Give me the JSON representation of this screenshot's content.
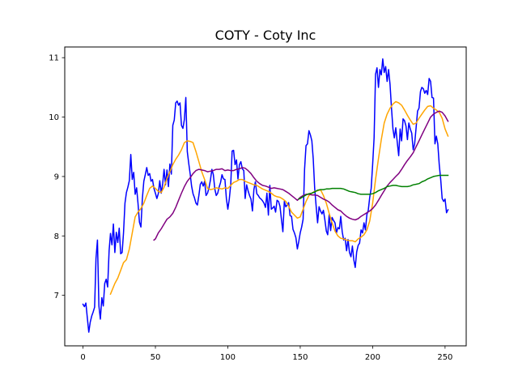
{
  "chart_data": {
    "type": "line",
    "title": "COTY - Coty Inc",
    "xlabel": "",
    "ylabel": "",
    "xlim": [
      -12.6,
      264.6
    ],
    "ylim": [
      6.15,
      11.18
    ],
    "xticks": [
      0,
      50,
      100,
      150,
      200,
      250
    ],
    "yticks": [
      7,
      8,
      9,
      10,
      11
    ],
    "grid": false,
    "legend": false,
    "series": [
      {
        "color": "#0000ff",
        "x": [
          0,
          1,
          2,
          3,
          4,
          5,
          6,
          7,
          8,
          9,
          10,
          11,
          12,
          13,
          14,
          15,
          16,
          17,
          18,
          19,
          20,
          21,
          22,
          23,
          24,
          25,
          26,
          27,
          28,
          29,
          30,
          31,
          32,
          33,
          34,
          35,
          36,
          37,
          38,
          39,
          40,
          41,
          42,
          43,
          44,
          45,
          46,
          47,
          48,
          49,
          50,
          51,
          52,
          53,
          54,
          55,
          56,
          57,
          58,
          59,
          60,
          61,
          62,
          63,
          64,
          65,
          66,
          67,
          68,
          69,
          70,
          71,
          72,
          73,
          74,
          75,
          76,
          77,
          78,
          79,
          80,
          81,
          82,
          83,
          84,
          85,
          86,
          87,
          88,
          89,
          90,
          91,
          92,
          93,
          94,
          95,
          96,
          97,
          98,
          99,
          100,
          101,
          102,
          103,
          104,
          105,
          106,
          107,
          108,
          109,
          110,
          111,
          112,
          113,
          114,
          115,
          116,
          117,
          118,
          119,
          120,
          121,
          122,
          123,
          124,
          125,
          126,
          127,
          128,
          129,
          130,
          131,
          132,
          133,
          134,
          135,
          136,
          137,
          138,
          139,
          140,
          141,
          142,
          143,
          144,
          145,
          146,
          147,
          148,
          149,
          150,
          151,
          152,
          153,
          154,
          155,
          156,
          157,
          158,
          159,
          160,
          161,
          162,
          163,
          164,
          165,
          166,
          167,
          168,
          169,
          170,
          171,
          172,
          173,
          174,
          175,
          176,
          177,
          178,
          179,
          180,
          181,
          182,
          183,
          184,
          185,
          186,
          187,
          188,
          189,
          190,
          191,
          192,
          193,
          194,
          195,
          196,
          197,
          198,
          199,
          200,
          201,
          202,
          203,
          204,
          205,
          206,
          207,
          208,
          209,
          210,
          211,
          212,
          213,
          214,
          215,
          216,
          217,
          218,
          219,
          220,
          221,
          222,
          223,
          224,
          225,
          226,
          227,
          228,
          229,
          230,
          231,
          232,
          233,
          234,
          235,
          236,
          237,
          238,
          239,
          240,
          241,
          242,
          243,
          244,
          245,
          246,
          247,
          248,
          249,
          250,
          251,
          252
        ],
        "y": [
          6.85,
          6.81,
          6.87,
          6.62,
          6.38,
          6.55,
          6.65,
          6.72,
          6.8,
          7.62,
          7.93,
          6.82,
          6.6,
          6.96,
          6.82,
          7.2,
          7.27,
          7.14,
          7.75,
          8.04,
          7.85,
          8.2,
          7.72,
          8.06,
          7.89,
          8.13,
          7.7,
          7.72,
          8.05,
          8.55,
          8.73,
          8.82,
          8.93,
          9.37,
          8.95,
          9.07,
          8.7,
          8.81,
          8.55,
          8.23,
          8.15,
          8.63,
          8.92,
          9.03,
          9.15,
          9.02,
          9.05,
          8.92,
          8.95,
          8.8,
          8.72,
          8.63,
          8.71,
          8.93,
          8.72,
          8.88,
          9.12,
          8.86,
          9.11,
          8.83,
          9.21,
          9.04,
          9.86,
          9.95,
          10.24,
          10.27,
          10.2,
          10.24,
          9.86,
          9.81,
          9.96,
          10.33,
          9.42,
          9.22,
          9.04,
          8.84,
          8.71,
          8.64,
          8.55,
          8.52,
          8.68,
          8.87,
          8.91,
          8.84,
          8.92,
          8.68,
          8.72,
          8.81,
          8.94,
          9.12,
          9.03,
          8.79,
          8.68,
          8.72,
          8.82,
          8.9,
          9.03,
          8.96,
          8.95,
          8.63,
          8.45,
          8.62,
          8.87,
          9.43,
          9.44,
          9.2,
          9.28,
          8.96,
          9.2,
          9.25,
          9.13,
          9.1,
          8.63,
          8.86,
          8.76,
          8.68,
          8.62,
          8.42,
          8.78,
          8.91,
          8.71,
          8.68,
          8.64,
          8.62,
          8.59,
          8.55,
          8.48,
          8.72,
          8.35,
          8.85,
          8.45,
          8.47,
          8.5,
          8.4,
          8.6,
          8.58,
          8.5,
          8.28,
          8.07,
          8.58,
          8.49,
          8.52,
          8.56,
          8.34,
          8.33,
          8.11,
          8.05,
          7.97,
          7.78,
          7.91,
          8.05,
          8.15,
          8.28,
          9.12,
          9.52,
          9.55,
          9.77,
          9.7,
          9.6,
          9.3,
          8.8,
          8.5,
          8.22,
          8.49,
          8.42,
          8.37,
          8.43,
          8.27,
          8.08,
          8.02,
          8.36,
          8.09,
          8.31,
          8.26,
          8.22,
          8.05,
          8.14,
          8.12,
          8.33,
          8.07,
          7.93,
          7.96,
          7.75,
          7.94,
          7.72,
          7.65,
          7.83,
          7.6,
          7.47,
          7.73,
          7.84,
          7.88,
          8.1,
          8.05,
          8.22,
          8.1,
          8.36,
          8.43,
          8.65,
          8.8,
          9.2,
          9.65,
          10.72,
          10.83,
          10.5,
          10.8,
          10.71,
          10.98,
          10.75,
          10.85,
          10.6,
          10.8,
          10.55,
          10.15,
          9.8,
          9.65,
          9.82,
          9.58,
          9.35,
          9.8,
          9.6,
          9.97,
          9.94,
          9.85,
          9.62,
          9.9,
          9.8,
          9.73,
          9.45,
          9.55,
          9.82,
          10.1,
          10.15,
          10.43,
          10.5,
          10.48,
          10.4,
          10.45,
          10.38,
          10.65,
          10.6,
          10.33,
          10.32,
          9.55,
          9.68,
          9.55,
          9.2,
          8.95,
          8.63,
          8.58,
          8.62,
          8.39,
          8.44
        ]
      },
      {
        "color": "#ffa500",
        "x": [
          19,
          20,
          22,
          24,
          26,
          28,
          30,
          32,
          34,
          36,
          38,
          40,
          42,
          44,
          46,
          48,
          50,
          52,
          54,
          56,
          58,
          60,
          62,
          64,
          66,
          68,
          70,
          72,
          74,
          76,
          78,
          80,
          82,
          84,
          86,
          88,
          90,
          92,
          94,
          96,
          98,
          100,
          102,
          104,
          106,
          108,
          110,
          112,
          114,
          116,
          118,
          120,
          122,
          124,
          126,
          128,
          130,
          132,
          134,
          136,
          138,
          140,
          142,
          144,
          146,
          148,
          150,
          152,
          154,
          156,
          158,
          160,
          162,
          164,
          166,
          168,
          170,
          172,
          174,
          176,
          178,
          180,
          182,
          184,
          186,
          188,
          190,
          192,
          194,
          196,
          198,
          200,
          202,
          204,
          206,
          208,
          210,
          212,
          214,
          216,
          218,
          220,
          222,
          224,
          226,
          228,
          230,
          232,
          234,
          236,
          238,
          240,
          242,
          244,
          246,
          248,
          250,
          252
        ],
        "y": [
          7.02,
          7.08,
          7.2,
          7.29,
          7.42,
          7.55,
          7.6,
          7.78,
          8.05,
          8.32,
          8.4,
          8.46,
          8.55,
          8.68,
          8.8,
          8.84,
          8.8,
          8.75,
          8.73,
          8.82,
          8.97,
          9.08,
          9.2,
          9.29,
          9.36,
          9.45,
          9.57,
          9.6,
          9.59,
          9.57,
          9.42,
          9.25,
          9.08,
          8.95,
          8.8,
          8.78,
          8.79,
          8.81,
          8.8,
          8.79,
          8.81,
          8.8,
          8.85,
          8.9,
          8.92,
          8.95,
          8.95,
          8.92,
          8.9,
          8.88,
          8.86,
          8.85,
          8.82,
          8.79,
          8.77,
          8.75,
          8.72,
          8.68,
          8.66,
          8.65,
          8.62,
          8.58,
          8.5,
          8.4,
          8.35,
          8.3,
          8.32,
          8.45,
          8.58,
          8.68,
          8.72,
          8.75,
          8.76,
          8.78,
          8.68,
          8.55,
          8.38,
          8.22,
          8.08,
          8.0,
          7.96,
          7.95,
          7.93,
          7.92,
          7.92,
          7.9,
          7.95,
          7.98,
          8.02,
          8.1,
          8.25,
          8.55,
          8.95,
          9.3,
          9.62,
          9.9,
          10.05,
          10.15,
          10.22,
          10.26,
          10.24,
          10.2,
          10.12,
          10.03,
          9.95,
          9.88,
          9.9,
          9.98,
          10.05,
          10.12,
          10.18,
          10.19,
          10.15,
          10.12,
          10.08,
          9.98,
          9.8,
          9.68
        ]
      },
      {
        "color": "#800080",
        "x": [
          49,
          50,
          52,
          54,
          56,
          58,
          60,
          62,
          64,
          66,
          68,
          70,
          72,
          74,
          76,
          78,
          80,
          82,
          84,
          86,
          88,
          90,
          92,
          94,
          96,
          98,
          100,
          102,
          104,
          106,
          108,
          110,
          112,
          114,
          116,
          118,
          120,
          122,
          124,
          126,
          128,
          130,
          132,
          134,
          136,
          138,
          140,
          142,
          144,
          146,
          148,
          150,
          152,
          154,
          156,
          158,
          160,
          162,
          164,
          166,
          168,
          170,
          172,
          174,
          176,
          178,
          180,
          182,
          184,
          186,
          188,
          190,
          192,
          194,
          196,
          198,
          200,
          202,
          204,
          206,
          208,
          210,
          212,
          214,
          216,
          218,
          220,
          222,
          224,
          226,
          228,
          230,
          232,
          234,
          236,
          238,
          240,
          242,
          244,
          246,
          248,
          250,
          252
        ],
        "y": [
          7.93,
          7.95,
          8.05,
          8.12,
          8.2,
          8.28,
          8.32,
          8.38,
          8.48,
          8.6,
          8.72,
          8.83,
          8.92,
          8.98,
          9.05,
          9.1,
          9.12,
          9.11,
          9.1,
          9.08,
          9.09,
          9.1,
          9.12,
          9.12,
          9.13,
          9.1,
          9.11,
          9.1,
          9.1,
          9.12,
          9.13,
          9.15,
          9.14,
          9.1,
          9.05,
          8.98,
          8.92,
          8.88,
          8.85,
          8.84,
          8.82,
          8.8,
          8.81,
          8.8,
          8.79,
          8.78,
          8.75,
          8.72,
          8.68,
          8.64,
          8.6,
          8.65,
          8.68,
          8.7,
          8.7,
          8.69,
          8.69,
          8.68,
          8.65,
          8.62,
          8.6,
          8.57,
          8.52,
          8.48,
          8.44,
          8.42,
          8.37,
          8.33,
          8.3,
          8.28,
          8.27,
          8.29,
          8.33,
          8.36,
          8.39,
          8.42,
          8.46,
          8.52,
          8.6,
          8.68,
          8.76,
          8.84,
          8.9,
          8.95,
          9.0,
          9.05,
          9.12,
          9.2,
          9.27,
          9.33,
          9.4,
          9.5,
          9.6,
          9.7,
          9.8,
          9.9,
          10.0,
          10.05,
          10.08,
          10.1,
          10.08,
          10.02,
          9.93
        ]
      },
      {
        "color": "#008000",
        "x": [
          149,
          150,
          152,
          154,
          156,
          158,
          160,
          162,
          164,
          166,
          168,
          170,
          172,
          174,
          176,
          178,
          180,
          182,
          184,
          186,
          188,
          190,
          192,
          194,
          196,
          198,
          200,
          202,
          204,
          206,
          208,
          210,
          212,
          214,
          216,
          218,
          220,
          222,
          224,
          226,
          228,
          230,
          232,
          234,
          236,
          238,
          240,
          242,
          244,
          246,
          248,
          250,
          252
        ],
        "y": [
          8.62,
          8.63,
          8.66,
          8.69,
          8.71,
          8.72,
          8.74,
          8.77,
          8.78,
          8.78,
          8.79,
          8.79,
          8.8,
          8.8,
          8.8,
          8.8,
          8.79,
          8.77,
          8.75,
          8.74,
          8.73,
          8.71,
          8.7,
          8.7,
          8.7,
          8.7,
          8.71,
          8.73,
          8.76,
          8.78,
          8.8,
          8.83,
          8.84,
          8.85,
          8.85,
          8.84,
          8.83,
          8.83,
          8.83,
          8.84,
          8.86,
          8.87,
          8.88,
          8.91,
          8.93,
          8.96,
          8.98,
          9.0,
          9.01,
          9.02,
          9.02,
          9.02,
          9.02
        ]
      }
    ]
  }
}
